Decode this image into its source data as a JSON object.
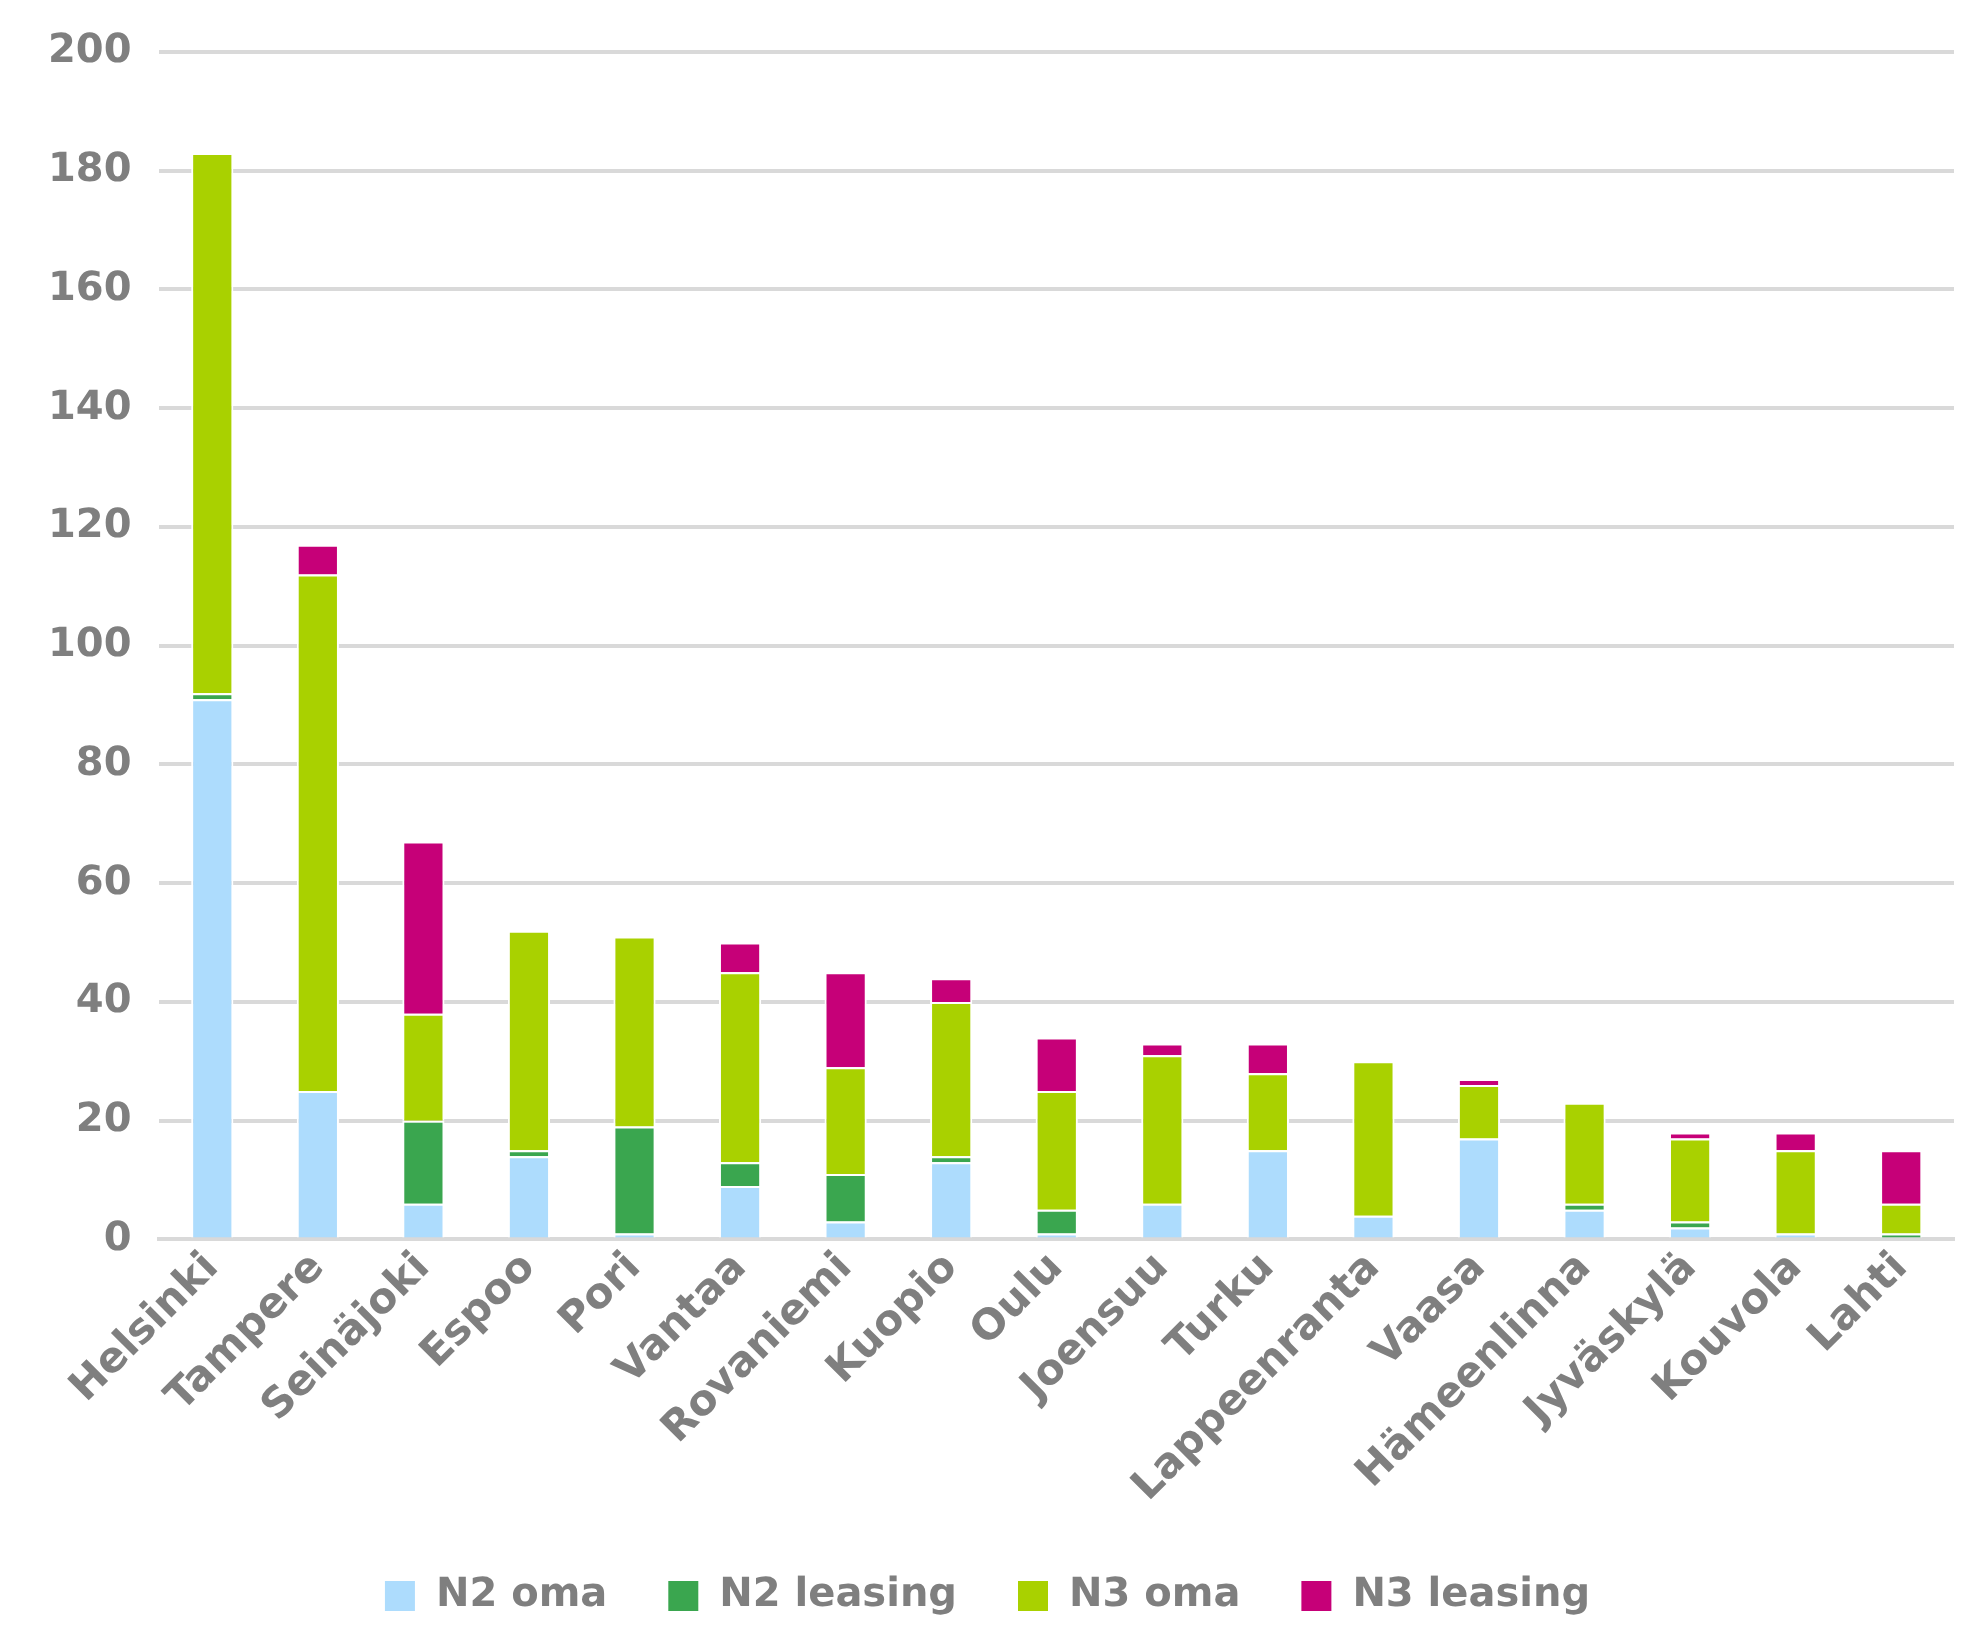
{
  "chart_data": {
    "type": "bar",
    "stacked": true,
    "categories": [
      "Helsinki",
      "Tampere",
      "Seinäjoki",
      "Espoo",
      "Pori",
      "Vantaa",
      "Rovaniemi",
      "Kuopio",
      "Oulu",
      "Joensuu",
      "Turku",
      "Lappeenranta",
      "Vaasa",
      "Hämeenlinna",
      "Jyväskylä",
      "Kouvola",
      "Lahti"
    ],
    "series": [
      {
        "name": "N2 oma",
        "color": "#addcfd",
        "values": [
          91,
          25,
          6,
          14,
          1,
          9,
          3,
          13,
          1,
          6,
          15,
          4,
          17,
          5,
          2,
          1,
          0
        ]
      },
      {
        "name": "N2 leasing",
        "color": "#3aa64f",
        "values": [
          1,
          0,
          14,
          1,
          18,
          4,
          8,
          1,
          4,
          0,
          0,
          0,
          0,
          1,
          1,
          0,
          1
        ]
      },
      {
        "name": "N3 oma",
        "color": "#a9d100",
        "values": [
          91,
          87,
          18,
          37,
          32,
          32,
          18,
          26,
          20,
          25,
          13,
          26,
          9,
          17,
          14,
          14,
          5
        ]
      },
      {
        "name": "N3 leasing",
        "color": "#c60078",
        "values": [
          0,
          5,
          29,
          0,
          0,
          5,
          16,
          4,
          9,
          2,
          5,
          0,
          1,
          0,
          1,
          3,
          9
        ]
      }
    ],
    "ylim": [
      0,
      200
    ],
    "yticks": [
      0,
      20,
      40,
      60,
      80,
      100,
      120,
      140,
      160,
      180,
      200
    ],
    "grid": "y",
    "legend": "bottom"
  }
}
